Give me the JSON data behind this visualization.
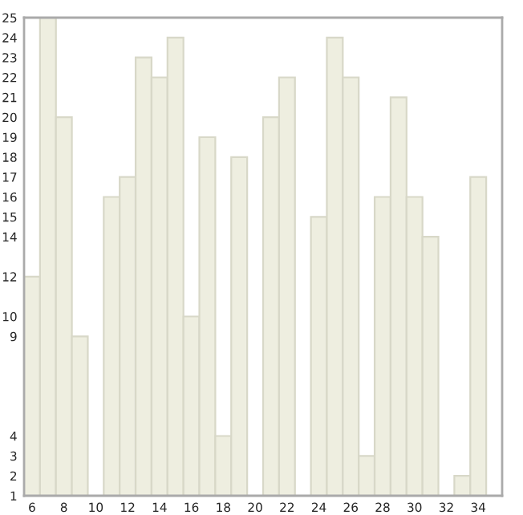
{
  "chart_data": {
    "type": "bar",
    "x": [
      6,
      7,
      8,
      9,
      10,
      11,
      12,
      13,
      14,
      15,
      16,
      17,
      18,
      19,
      20,
      21,
      22,
      23,
      24,
      25,
      26,
      27,
      28,
      29,
      30,
      31,
      32,
      33,
      34
    ],
    "values": [
      12,
      25,
      20,
      9,
      1,
      16,
      17,
      23,
      22,
      24,
      10,
      19,
      4,
      18,
      1,
      20,
      22,
      1,
      15,
      24,
      22,
      3,
      16,
      21,
      16,
      14,
      1,
      2,
      17
    ],
    "color": "#eeeee0",
    "xlim": [
      5.5,
      35.5
    ],
    "xticks": [
      6,
      8,
      10,
      12,
      14,
      16,
      18,
      20,
      22,
      24,
      26,
      28,
      30,
      32,
      34
    ],
    "ylim": [
      1,
      25
    ],
    "yticks": [
      1,
      2,
      3,
      4,
      9,
      10,
      12,
      14,
      15,
      16,
      17,
      18,
      19,
      20,
      21,
      22,
      23,
      24,
      25
    ],
    "grid": false,
    "legend": false
  }
}
